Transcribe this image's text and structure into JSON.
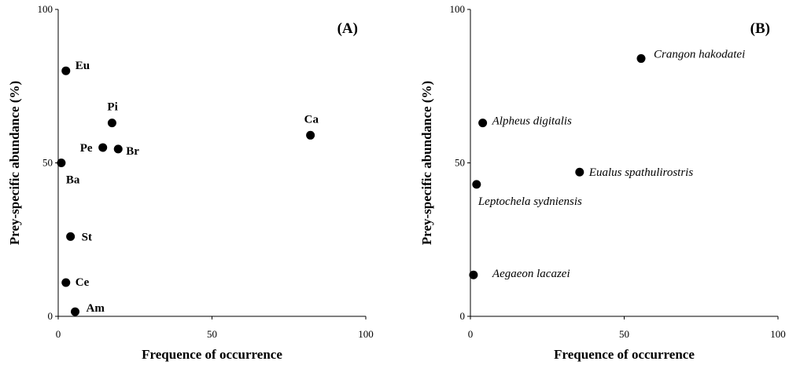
{
  "chart_data": [
    {
      "type": "scatter",
      "panel_label": "(A)",
      "xlabel": "Frequence of occurrence",
      "ylabel": "Prey-specific abundance (%)",
      "xlim": [
        0,
        100
      ],
      "ylim": [
        0,
        100
      ],
      "xticks": [
        0,
        50,
        100
      ],
      "yticks": [
        0,
        50,
        100
      ],
      "label_style": "bold",
      "points": [
        {
          "label": "Eu",
          "x": 2.5,
          "y": 80
        },
        {
          "label": "Pi",
          "x": 17.5,
          "y": 63
        },
        {
          "label": "Pe",
          "x": 14.5,
          "y": 55
        },
        {
          "label": "Br",
          "x": 19.5,
          "y": 54.5
        },
        {
          "label": "Ca",
          "x": 82,
          "y": 59
        },
        {
          "label": "Ba",
          "x": 1,
          "y": 50
        },
        {
          "label": "St",
          "x": 4,
          "y": 26
        },
        {
          "label": "Ce",
          "x": 2.5,
          "y": 11
        },
        {
          "label": "Am",
          "x": 5.5,
          "y": 1.5
        }
      ]
    },
    {
      "type": "scatter",
      "panel_label": "(B)",
      "xlabel": "Frequence of occurrence",
      "ylabel": "Prey-specific abundance (%)",
      "xlim": [
        0,
        100
      ],
      "ylim": [
        0,
        100
      ],
      "xticks": [
        0,
        50,
        100
      ],
      "yticks": [
        0,
        50,
        100
      ],
      "label_style": "italic",
      "points": [
        {
          "label": "Crangon hakodatei",
          "x": 55.5,
          "y": 84
        },
        {
          "label": "Alpheus digitalis",
          "x": 4,
          "y": 63
        },
        {
          "label": "Eualus spathulirostris",
          "x": 35.5,
          "y": 47
        },
        {
          "label": "Leptochela sydniensis",
          "x": 2,
          "y": 43
        },
        {
          "label": "Aegaeon lacazei",
          "x": 1,
          "y": 13.5
        }
      ]
    }
  ]
}
